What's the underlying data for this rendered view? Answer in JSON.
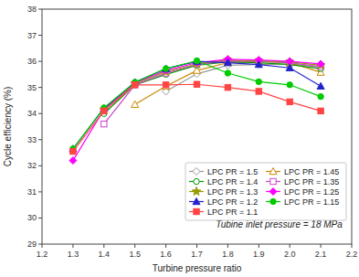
{
  "chart_data": {
    "type": "line",
    "xlabel": "Turbine pressure ratio",
    "ylabel": "Cycle efficiency (%)",
    "annotation": "Tubine inlet pressure = 18 MPa",
    "x": [
      1.3,
      1.4,
      1.5,
      1.6,
      1.7,
      1.8,
      1.9,
      2.0,
      2.1
    ],
    "series": [
      {
        "name": "LPC PR = 1.5",
        "color": "#999999",
        "marker": "open-diamond",
        "values": [
          null,
          null,
          null,
          34.85,
          35.52,
          35.85,
          35.88,
          35.9,
          35.78
        ]
      },
      {
        "name": "LPC PR = 1.45",
        "color": "#CC8800",
        "marker": "open-triangle",
        "values": [
          null,
          null,
          34.35,
          35.05,
          35.65,
          35.95,
          36.0,
          35.95,
          35.58
        ]
      },
      {
        "name": "LPC PR = 1.4",
        "color": "#009900",
        "marker": "open-circle",
        "values": [
          null,
          34.0,
          35.1,
          35.5,
          35.85,
          35.98,
          35.95,
          35.88,
          35.72
        ]
      },
      {
        "name": "LPC PR = 1.35",
        "color": "#CC44CC",
        "marker": "open-square",
        "values": [
          null,
          33.6,
          35.1,
          35.55,
          35.88,
          36.02,
          36.0,
          35.95,
          35.8
        ]
      },
      {
        "name": "LPC PR = 1.3",
        "color": "#999900",
        "marker": "star",
        "values": [
          null,
          34.15,
          35.15,
          35.6,
          35.9,
          36.05,
          36.02,
          35.98,
          35.85
        ]
      },
      {
        "name": "LPC PR = 1.25",
        "color": "#FF00FF",
        "marker": "diamond",
        "values": [
          32.2,
          34.15,
          35.18,
          35.65,
          35.95,
          36.08,
          36.05,
          36.0,
          35.9
        ]
      },
      {
        "name": "LPC PR = 1.2",
        "color": "#2222CC",
        "marker": "triangle",
        "values": [
          32.65,
          34.2,
          35.2,
          35.72,
          36.0,
          35.95,
          35.88,
          35.75,
          35.05
        ]
      },
      {
        "name": "LPC PR = 1.15",
        "color": "#00CC00",
        "marker": "circle",
        "values": [
          32.65,
          34.22,
          35.2,
          35.72,
          36.02,
          35.55,
          35.22,
          35.1,
          34.65
        ]
      },
      {
        "name": "LPC PR = 1.1",
        "color": "#FF4444",
        "marker": "square",
        "values": [
          32.55,
          34.1,
          35.1,
          35.1,
          35.12,
          35.0,
          34.85,
          34.45,
          34.1
        ]
      }
    ],
    "xlim": [
      1.2,
      2.2
    ],
    "ylim": [
      29,
      38
    ],
    "xticks": [
      1.2,
      1.3,
      1.4,
      1.5,
      1.6,
      1.7,
      1.8,
      1.9,
      {
        "value": 2.0,
        "label": "2.0"
      },
      2.1,
      2.2
    ],
    "yticks": [
      29,
      30,
      31,
      32,
      33,
      34,
      35,
      36,
      37,
      38
    ],
    "grid": false,
    "legend": "lower right"
  }
}
